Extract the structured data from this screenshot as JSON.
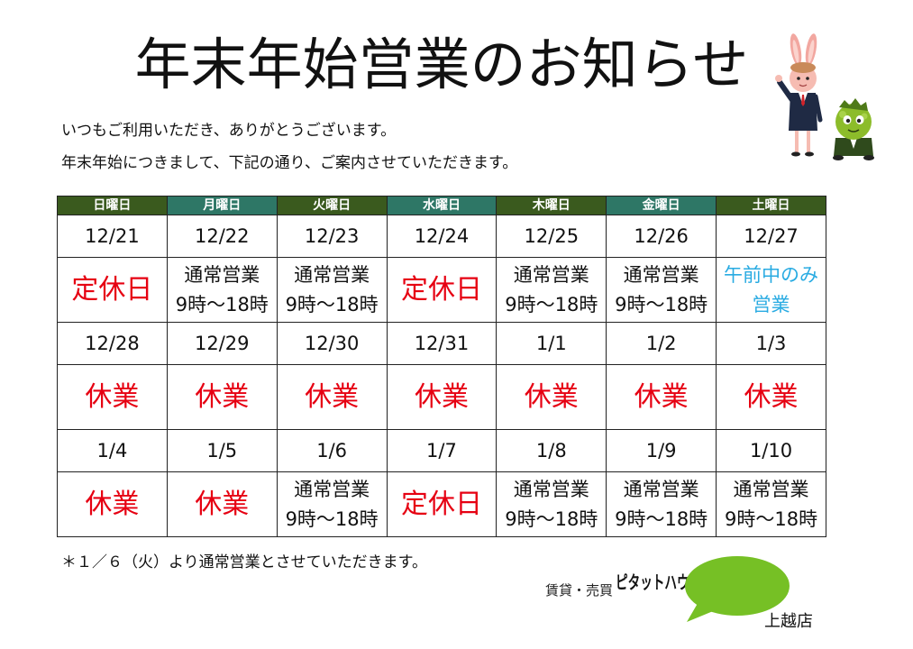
{
  "title": "年末年始営業のお知らせ",
  "intro": [
    "いつもご利用いただき、ありがとうございます。",
    "年末年始につきまして、下記の通り、ご案内させていただきます。"
  ],
  "colors": {
    "header": [
      "#3a5a1e",
      "#2e7766"
    ],
    "closed": "#e60012",
    "open": "#111111",
    "morning_only": "#29abe2",
    "logo_green": "#76c025"
  },
  "schedule": {
    "weekdays": [
      "日曜日",
      "月曜日",
      "火曜日",
      "水曜日",
      "木曜日",
      "金曜日",
      "土曜日"
    ],
    "weeks": [
      {
        "dates": [
          "12/21",
          "12/22",
          "12/23",
          "12/24",
          "12/25",
          "12/26",
          "12/27"
        ],
        "statuses": [
          {
            "lines": [
              "定休日"
            ],
            "color": "#e60012"
          },
          {
            "lines": [
              "通常営業",
              "9時～18時"
            ],
            "color": "#111111"
          },
          {
            "lines": [
              "通常営業",
              "9時～18時"
            ],
            "color": "#111111"
          },
          {
            "lines": [
              "定休日"
            ],
            "color": "#e60012"
          },
          {
            "lines": [
              "通常営業",
              "9時～18時"
            ],
            "color": "#111111"
          },
          {
            "lines": [
              "通常営業",
              "9時～18時"
            ],
            "color": "#111111"
          },
          {
            "lines": [
              "午前中のみ",
              "営業"
            ],
            "color": "#29abe2"
          }
        ]
      },
      {
        "dates": [
          "12/28",
          "12/29",
          "12/30",
          "12/31",
          "1/1",
          "1/2",
          "1/3"
        ],
        "statuses": [
          {
            "lines": [
              "休業"
            ],
            "color": "#e60012"
          },
          {
            "lines": [
              "休業"
            ],
            "color": "#e60012"
          },
          {
            "lines": [
              "休業"
            ],
            "color": "#e60012"
          },
          {
            "lines": [
              "休業"
            ],
            "color": "#e60012"
          },
          {
            "lines": [
              "休業"
            ],
            "color": "#e60012"
          },
          {
            "lines": [
              "休業"
            ],
            "color": "#e60012"
          },
          {
            "lines": [
              "休業"
            ],
            "color": "#e60012"
          }
        ]
      },
      {
        "dates": [
          "1/4",
          "1/5",
          "1/6",
          "1/7",
          "1/8",
          "1/9",
          "1/10"
        ],
        "statuses": [
          {
            "lines": [
              "休業"
            ],
            "color": "#e60012"
          },
          {
            "lines": [
              "休業"
            ],
            "color": "#e60012"
          },
          {
            "lines": [
              "通常営業",
              "9時～18時"
            ],
            "color": "#111111"
          },
          {
            "lines": [
              "定休日"
            ],
            "color": "#e60012"
          },
          {
            "lines": [
              "通常営業",
              "9時～18時"
            ],
            "color": "#111111"
          },
          {
            "lines": [
              "通常営業",
              "9時～18時"
            ],
            "color": "#111111"
          },
          {
            "lines": [
              "通常営業",
              "9時～18時"
            ],
            "color": "#111111"
          }
        ]
      }
    ]
  },
  "note": "＊１／６（火）より通常営業とさせていただきます。",
  "logo": {
    "prefix": "賃貸・売買",
    "brand": "ピタットハウス",
    "branch": "上越店"
  },
  "illustration": [
    "rabbit-mascot",
    "green-mascot"
  ]
}
